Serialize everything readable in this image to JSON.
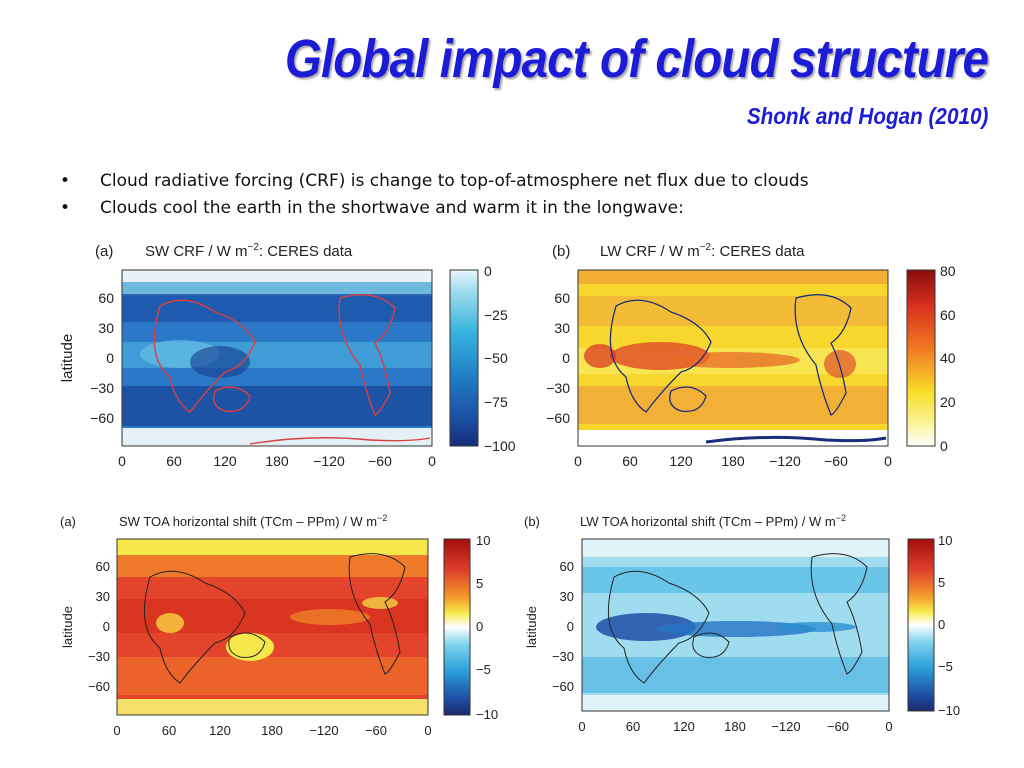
{
  "slide": {
    "title": "Global impact of cloud structure",
    "subtitle": "Shonk and Hogan (2010)",
    "bullets": [
      "Cloud radiative forcing (CRF) is change to top-of-atmosphere net flux due to clouds",
      "Clouds cool the earth in the shortwave and warm it in the longwave:"
    ]
  },
  "figures": [
    {
      "tag": "(a)",
      "title_main": "SW CRF / W m",
      "title_sup": "−2",
      "title_rest": ": CERES data",
      "ylabel": "latitude",
      "lat_ticks": [
        "60",
        "30",
        "0",
        "−30",
        "−60"
      ],
      "lon_ticks": [
        "0",
        "60",
        "120",
        "180",
        "−120",
        "−60",
        "0"
      ],
      "colorbar_ticks": [
        "0",
        "−25",
        "−50",
        "−75",
        "−100"
      ],
      "colormap": "blues",
      "coast_color": "#d94040"
    },
    {
      "tag": "(b)",
      "title_main": "LW CRF / W m",
      "title_sup": "−2",
      "title_rest": ": CERES data",
      "ylabel": "",
      "lat_ticks": [
        "60",
        "30",
        "0",
        "−30",
        "−60"
      ],
      "lon_ticks": [
        "0",
        "60",
        "120",
        "180",
        "−120",
        "−60",
        "0"
      ],
      "colorbar_ticks": [
        "80",
        "60",
        "40",
        "20",
        "0"
      ],
      "colormap": "hot",
      "coast_color": "#1a2f7a"
    },
    {
      "tag": "(a)",
      "title_main": "SW TOA horizontal shift (TCm – PPm) / W m",
      "title_sup": "−2",
      "title_rest": "",
      "ylabel": "latitude",
      "lat_ticks": [
        "60",
        "30",
        "0",
        "−30",
        "−60"
      ],
      "lon_ticks": [
        "0",
        "60",
        "120",
        "180",
        "−120",
        "−60",
        "0"
      ],
      "colorbar_ticks": [
        "10",
        "5",
        "0",
        "−5",
        "−10"
      ],
      "colormap": "diverging-warm",
      "coast_color": "#222222"
    },
    {
      "tag": "(b)",
      "title_main": "LW TOA horizontal shift (TCm – PPm) / W m",
      "title_sup": "−2",
      "title_rest": "",
      "ylabel": "latitude",
      "lat_ticks": [
        "60",
        "30",
        "0",
        "−30",
        "−60"
      ],
      "lon_ticks": [
        "0",
        "60",
        "120",
        "180",
        "−120",
        "−60",
        "0"
      ],
      "colorbar_ticks": [
        "10",
        "5",
        "0",
        "−5",
        "−10"
      ],
      "colormap": "diverging-cool",
      "coast_color": "#222222"
    }
  ]
}
